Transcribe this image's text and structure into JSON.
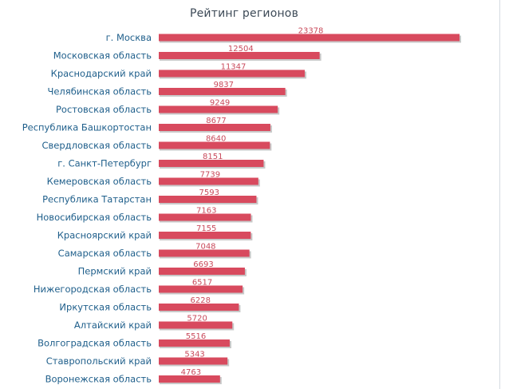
{
  "title": "Рейтинг регионов",
  "colors": {
    "bar": "#d84a5e",
    "label": "#1f5f8b",
    "value": "#c94a5b"
  },
  "chart_data": {
    "type": "bar",
    "orientation": "horizontal",
    "title": "Рейтинг регионов",
    "xlabel": "",
    "ylabel": "",
    "xlim": [
      0,
      23378
    ],
    "grid": false,
    "legend": "none",
    "categories": [
      "г. Москва",
      "Московская область",
      "Краснодарский край",
      "Челябинская область",
      "Ростовская область",
      "Республика Башкортостан",
      "Свердловская область",
      "г. Санкт-Петербург",
      "Кемеровская область",
      "Республика Татарстан",
      "Новосибирская область",
      "Красноярский край",
      "Самарская область",
      "Пермский край",
      "Нижегородская область",
      "Иркутская область",
      "Алтайский край",
      "Волгоградская область",
      "Ставропольский край",
      "Воронежская область"
    ],
    "values": [
      23378,
      12504,
      11347,
      9837,
      9249,
      8677,
      8640,
      8151,
      7739,
      7593,
      7163,
      7155,
      7048,
      6693,
      6517,
      6228,
      5720,
      5516,
      5343,
      4763
    ]
  }
}
